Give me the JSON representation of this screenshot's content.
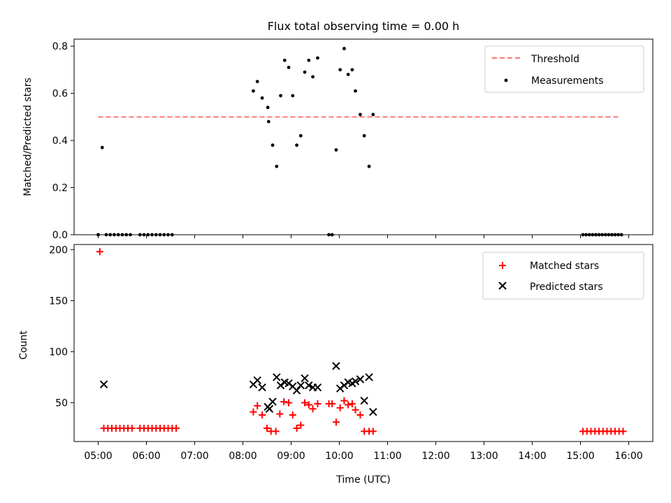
{
  "chart_data": [
    {
      "type": "scatter",
      "title": "Flux total observing time = 0.00 h",
      "xlabel": "",
      "ylabel": "Matched/Predicted stars",
      "xlim": [
        "04:30",
        "16:30"
      ],
      "ylim": [
        0,
        0.83
      ],
      "yticks": [
        0.0,
        0.2,
        0.4,
        0.6,
        0.8
      ],
      "ytick_labels": [
        "0.0",
        "0.2",
        "0.4",
        "0.6",
        "0.8"
      ],
      "legend_position": "top-right",
      "threshold": {
        "name": "Threshold",
        "y": 0.5,
        "x_range": [
          "05:00",
          "15:50"
        ],
        "color": "#ff7777",
        "style": "dashed"
      },
      "series": [
        {
          "name": "Measurements",
          "marker": "dot",
          "color": "#000000",
          "points": [
            [
              "05:00",
              0.0
            ],
            [
              "05:05",
              0.37
            ],
            [
              "05:10",
              0.0
            ],
            [
              "05:15",
              0.0
            ],
            [
              "05:20",
              0.0
            ],
            [
              "05:25",
              0.0
            ],
            [
              "05:30",
              0.0
            ],
            [
              "05:35",
              0.0
            ],
            [
              "05:40",
              0.0
            ],
            [
              "05:52",
              0.0
            ],
            [
              "05:57",
              0.0
            ],
            [
              "06:02",
              0.0
            ],
            [
              "06:07",
              0.0
            ],
            [
              "06:12",
              0.0
            ],
            [
              "06:17",
              0.0
            ],
            [
              "06:22",
              0.0
            ],
            [
              "06:27",
              0.0
            ],
            [
              "06:32",
              0.0
            ],
            [
              "08:13",
              0.61
            ],
            [
              "08:18",
              0.65
            ],
            [
              "08:24",
              0.58
            ],
            [
              "08:31",
              0.54
            ],
            [
              "08:32",
              0.48
            ],
            [
              "08:37",
              0.38
            ],
            [
              "08:42",
              0.29
            ],
            [
              "08:47",
              0.59
            ],
            [
              "08:52",
              0.74
            ],
            [
              "08:57",
              0.71
            ],
            [
              "09:02",
              0.59
            ],
            [
              "09:07",
              0.38
            ],
            [
              "09:12",
              0.42
            ],
            [
              "09:17",
              0.69
            ],
            [
              "09:22",
              0.74
            ],
            [
              "09:27",
              0.67
            ],
            [
              "09:33",
              0.75
            ],
            [
              "09:47",
              0.0
            ],
            [
              "09:51",
              0.0
            ],
            [
              "09:56",
              0.36
            ],
            [
              "10:01",
              0.7
            ],
            [
              "10:06",
              0.79
            ],
            [
              "10:11",
              0.68
            ],
            [
              "10:16",
              0.7
            ],
            [
              "10:20",
              0.61
            ],
            [
              "10:26",
              0.51
            ],
            [
              "10:31",
              0.42
            ],
            [
              "10:37",
              0.29
            ],
            [
              "10:42",
              0.51
            ],
            [
              "15:03",
              0.0
            ],
            [
              "15:07",
              0.0
            ],
            [
              "15:11",
              0.0
            ],
            [
              "15:15",
              0.0
            ],
            [
              "15:19",
              0.0
            ],
            [
              "15:23",
              0.0
            ],
            [
              "15:27",
              0.0
            ],
            [
              "15:31",
              0.0
            ],
            [
              "15:35",
              0.0
            ],
            [
              "15:39",
              0.0
            ],
            [
              "15:43",
              0.0
            ],
            [
              "15:47",
              0.0
            ],
            [
              "15:51",
              0.0
            ]
          ]
        }
      ]
    },
    {
      "type": "scatter",
      "title": "",
      "xlabel": "Time (UTC)",
      "ylabel": "Count",
      "xlim": [
        "04:30",
        "16:30"
      ],
      "ylim": [
        12,
        205
      ],
      "yticks": [
        50,
        100,
        150,
        200
      ],
      "ytick_labels": [
        "50",
        "100",
        "150",
        "200"
      ],
      "xticks": [
        "05:00",
        "06:00",
        "07:00",
        "08:00",
        "09:00",
        "10:00",
        "11:00",
        "12:00",
        "13:00",
        "14:00",
        "15:00",
        "16:00"
      ],
      "legend_position": "top-right",
      "series": [
        {
          "name": "Matched stars",
          "marker": "plus",
          "color": "#ff0000",
          "points": [
            [
              "05:02",
              198
            ],
            [
              "05:07",
              25
            ],
            [
              "05:12",
              25
            ],
            [
              "05:17",
              25
            ],
            [
              "05:22",
              25
            ],
            [
              "05:27",
              25
            ],
            [
              "05:32",
              25
            ],
            [
              "05:37",
              25
            ],
            [
              "05:42",
              25
            ],
            [
              "05:52",
              25
            ],
            [
              "05:57",
              25
            ],
            [
              "06:02",
              25
            ],
            [
              "06:07",
              25
            ],
            [
              "06:12",
              25
            ],
            [
              "06:17",
              25
            ],
            [
              "06:22",
              25
            ],
            [
              "06:27",
              25
            ],
            [
              "06:32",
              25
            ],
            [
              "06:37",
              25
            ],
            [
              "08:13",
              41
            ],
            [
              "08:18",
              47
            ],
            [
              "08:24",
              38
            ],
            [
              "08:30",
              25
            ],
            [
              "08:35",
              22
            ],
            [
              "08:41",
              22
            ],
            [
              "08:46",
              39
            ],
            [
              "08:51",
              51
            ],
            [
              "08:57",
              50
            ],
            [
              "09:02",
              38
            ],
            [
              "09:07",
              25
            ],
            [
              "09:12",
              28
            ],
            [
              "09:17",
              50
            ],
            [
              "09:22",
              48
            ],
            [
              "09:27",
              44
            ],
            [
              "09:33",
              49
            ],
            [
              "09:47",
              49
            ],
            [
              "09:51",
              49
            ],
            [
              "09:56",
              31
            ],
            [
              "10:01",
              45
            ],
            [
              "10:06",
              52
            ],
            [
              "10:11",
              48
            ],
            [
              "10:16",
              49
            ],
            [
              "10:20",
              43
            ],
            [
              "10:26",
              38
            ],
            [
              "10:31",
              22
            ],
            [
              "10:37",
              22
            ],
            [
              "10:42",
              22
            ],
            [
              "15:03",
              22
            ],
            [
              "15:08",
              22
            ],
            [
              "15:13",
              22
            ],
            [
              "15:18",
              22
            ],
            [
              "15:23",
              22
            ],
            [
              "15:28",
              22
            ],
            [
              "15:33",
              22
            ],
            [
              "15:38",
              22
            ],
            [
              "15:43",
              22
            ],
            [
              "15:48",
              22
            ],
            [
              "15:53",
              22
            ]
          ]
        },
        {
          "name": "Predicted stars",
          "marker": "x",
          "color": "#000000",
          "points": [
            [
              "05:07",
              68
            ],
            [
              "08:13",
              68
            ],
            [
              "08:18",
              72
            ],
            [
              "08:24",
              65
            ],
            [
              "08:31",
              46
            ],
            [
              "08:33",
              44
            ],
            [
              "08:37",
              51
            ],
            [
              "08:42",
              75
            ],
            [
              "08:47",
              67
            ],
            [
              "08:52",
              70
            ],
            [
              "08:57",
              69
            ],
            [
              "09:02",
              66
            ],
            [
              "09:07",
              62
            ],
            [
              "09:12",
              67
            ],
            [
              "09:17",
              74
            ],
            [
              "09:22",
              67
            ],
            [
              "09:27",
              65
            ],
            [
              "09:33",
              65
            ],
            [
              "09:56",
              86
            ],
            [
              "10:01",
              64
            ],
            [
              "10:06",
              67
            ],
            [
              "10:11",
              70
            ],
            [
              "10:16",
              69
            ],
            [
              "10:20",
              71
            ],
            [
              "10:26",
              73
            ],
            [
              "10:31",
              52
            ],
            [
              "10:37",
              75
            ],
            [
              "10:42",
              41
            ]
          ]
        }
      ]
    }
  ]
}
